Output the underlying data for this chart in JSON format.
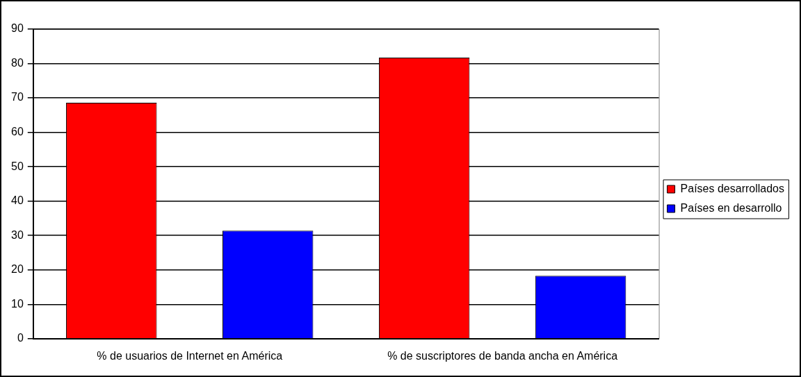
{
  "chart_data": {
    "type": "bar",
    "categories": [
      "% de usuarios de Internet en América",
      "% de suscriptores de banda ancha en América"
    ],
    "series": [
      {
        "name": "Países desarrollados",
        "color": "#ff0000",
        "values": [
          68.6,
          81.7
        ]
      },
      {
        "name": "Países en desarrollo",
        "color": "#0000ff",
        "values": [
          31.4,
          18.3
        ]
      }
    ],
    "ylim": [
      0,
      90
    ],
    "yticks": [
      0,
      10,
      20,
      30,
      40,
      50,
      60,
      70,
      80,
      90
    ],
    "grid": "y",
    "legend": "right"
  }
}
